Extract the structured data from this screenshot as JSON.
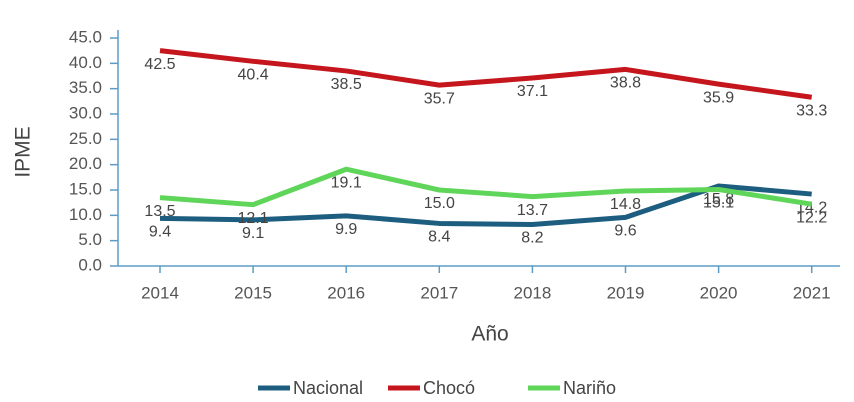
{
  "chart_data": {
    "type": "line",
    "x_label": "Año",
    "y_label": "IPME",
    "categories": [
      "2014",
      "2015",
      "2016",
      "2017",
      "2018",
      "2019",
      "2020",
      "2021"
    ],
    "series": [
      {
        "name": "Nacional",
        "color": "#1d5e80",
        "values": [
          9.4,
          9.1,
          9.9,
          8.4,
          8.2,
          9.6,
          15.8,
          14.2
        ],
        "value_labels": [
          "9.4",
          "9.1",
          "9.9",
          "8.4",
          "8.2",
          "9.6",
          "15.8",
          "14.2"
        ]
      },
      {
        "name": "Chocó",
        "color": "#c4161c",
        "values": [
          42.5,
          40.4,
          38.5,
          35.7,
          37.1,
          38.8,
          35.9,
          33.3
        ],
        "value_labels": [
          "42.5",
          "40.4",
          "38.5",
          "35.7",
          "37.1",
          "38.8",
          "35.9",
          "33.3"
        ]
      },
      {
        "name": "Nariño",
        "color": "#5fd65a",
        "values": [
          13.5,
          12.1,
          19.1,
          15.0,
          13.7,
          14.8,
          15.1,
          12.2
        ],
        "value_labels": [
          "13.5",
          "12.1",
          "19.1",
          "15.0",
          "13.7",
          "14.8",
          "15.1",
          "12.2"
        ]
      }
    ],
    "ylim": [
      0,
      45
    ],
    "yticks": [
      {
        "value": 0,
        "label": "0.0"
      },
      {
        "value": 5,
        "label": "5.0"
      },
      {
        "value": 10,
        "label": "10.0"
      },
      {
        "value": 15,
        "label": "15.0"
      },
      {
        "value": 20,
        "label": "20.0"
      },
      {
        "value": 25,
        "label": "25.0"
      },
      {
        "value": 30,
        "label": "30.0"
      },
      {
        "value": 35,
        "label": "35.0"
      },
      {
        "value": 40,
        "label": "40.0"
      },
      {
        "value": 45,
        "label": "45.0"
      }
    ],
    "legend": "bottom"
  }
}
